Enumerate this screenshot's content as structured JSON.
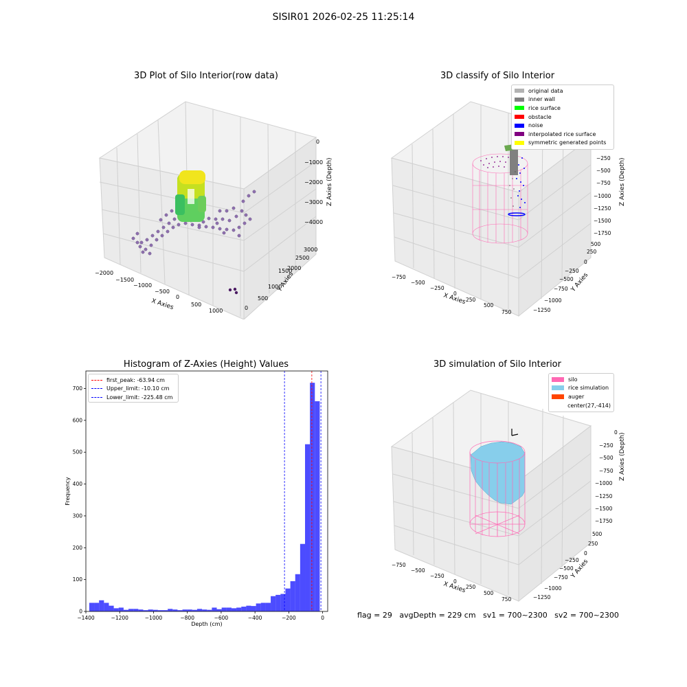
{
  "figure": {
    "suptitle": "SISIR01 2026-02-25 11:25:14",
    "footer": "flag = 29   avgDepth = 229 cm   sv1 = 700~2300   sv2 = 700~2300"
  },
  "panels": {
    "raw": {
      "title": "3D Plot of Silo Interior(row data)",
      "xlabel": "X Axies",
      "ylabel": "Y Axies",
      "zlabel": "Z Axies (Depth)",
      "xticks": [
        "−2000",
        "−1500",
        "−1000",
        "−500",
        "0",
        "500",
        "1000"
      ],
      "yticks": [
        "0",
        "500",
        "1000",
        "1500",
        "2000",
        "2500",
        "3000"
      ],
      "zticks": [
        "0",
        "−1000",
        "−2000",
        "−3000",
        "−4000"
      ]
    },
    "classify": {
      "title": "3D classify of Silo Interior",
      "xlabel": "X Axies",
      "ylabel": "Y Axies",
      "zlabel": "Z Axies (Depth)",
      "xticks": [
        "−750",
        "−500",
        "−250",
        "0",
        "250",
        "500",
        "750"
      ],
      "yticks": [
        "500",
        "250",
        "0",
        "−250",
        "−500",
        "−750",
        "−1000",
        "−1250"
      ],
      "zticks": [
        "−250",
        "−500",
        "−750",
        "−1000",
        "−1250",
        "−1500",
        "−1750"
      ],
      "legend": [
        {
          "label": "original data",
          "color": "#b3b3b3"
        },
        {
          "label": "inner wall",
          "color": "#808080"
        },
        {
          "label": "rice surface",
          "color": "#00ff00"
        },
        {
          "label": "obstacle",
          "color": "#ff0000"
        },
        {
          "label": "noise",
          "color": "#0000ff"
        },
        {
          "label": "interpolated rice surface",
          "color": "#800080"
        },
        {
          "label": "symmetric generated points",
          "color": "#ffff00"
        }
      ]
    },
    "simulation": {
      "title": "3D simulation of Silo Interior",
      "xlabel": "X Axies",
      "ylabel": "Y Axies",
      "zlabel": "Z Axies (Depth)",
      "xticks": [
        "−750",
        "−500",
        "−250",
        "0",
        "250",
        "500",
        "750"
      ],
      "yticks": [
        "500",
        "250",
        "0",
        "−250",
        "−500",
        "−750",
        "−1000",
        "−1250"
      ],
      "zticks": [
        "0",
        "−250",
        "−500",
        "−750",
        "−1000",
        "−1250",
        "−1500",
        "−1750"
      ],
      "legend": [
        {
          "label": "silo",
          "color": "#ff69b4"
        },
        {
          "label": "rice simulation",
          "color": "#87ceeb"
        },
        {
          "label": "auger",
          "color": "#ff4500"
        },
        {
          "label": "center(27,-414)",
          "color": ""
        }
      ]
    }
  },
  "chart_data": {
    "type": "bar",
    "title": "Histogram of Z-Axies (Height) Values",
    "xlabel": "Depth (cm)",
    "ylabel": "Frequency",
    "xlim": [
      -1400,
      30
    ],
    "ylim": [
      0,
      755
    ],
    "xticks": [
      -1400,
      -1200,
      -1000,
      -800,
      -600,
      -400,
      -200,
      0
    ],
    "yticks": [
      0,
      100,
      200,
      300,
      400,
      500,
      600,
      700
    ],
    "bar_color": "#0000ff",
    "bins": [
      {
        "x0": -1380,
        "x1": -1351,
        "count": 27
      },
      {
        "x0": -1351,
        "x1": -1322,
        "count": 27
      },
      {
        "x0": -1322,
        "x1": -1293,
        "count": 35
      },
      {
        "x0": -1293,
        "x1": -1264,
        "count": 27
      },
      {
        "x0": -1264,
        "x1": -1235,
        "count": 18
      },
      {
        "x0": -1235,
        "x1": -1206,
        "count": 10
      },
      {
        "x0": -1206,
        "x1": -1177,
        "count": 12
      },
      {
        "x0": -1177,
        "x1": -1148,
        "count": 5
      },
      {
        "x0": -1148,
        "x1": -1119,
        "count": 8
      },
      {
        "x0": -1119,
        "x1": -1090,
        "count": 8
      },
      {
        "x0": -1090,
        "x1": -1061,
        "count": 6
      },
      {
        "x0": -1061,
        "x1": -1032,
        "count": 4
      },
      {
        "x0": -1032,
        "x1": -1003,
        "count": 6
      },
      {
        "x0": -1003,
        "x1": -974,
        "count": 5
      },
      {
        "x0": -974,
        "x1": -945,
        "count": 4
      },
      {
        "x0": -945,
        "x1": -916,
        "count": 4
      },
      {
        "x0": -916,
        "x1": -887,
        "count": 8
      },
      {
        "x0": -887,
        "x1": -858,
        "count": 6
      },
      {
        "x0": -858,
        "x1": -829,
        "count": 4
      },
      {
        "x0": -829,
        "x1": -800,
        "count": 6
      },
      {
        "x0": -800,
        "x1": -771,
        "count": 6
      },
      {
        "x0": -771,
        "x1": -742,
        "count": 5
      },
      {
        "x0": -742,
        "x1": -713,
        "count": 8
      },
      {
        "x0": -713,
        "x1": -684,
        "count": 6
      },
      {
        "x0": -684,
        "x1": -655,
        "count": 5
      },
      {
        "x0": -655,
        "x1": -626,
        "count": 12
      },
      {
        "x0": -626,
        "x1": -597,
        "count": 7
      },
      {
        "x0": -597,
        "x1": -568,
        "count": 12
      },
      {
        "x0": -568,
        "x1": -539,
        "count": 12
      },
      {
        "x0": -539,
        "x1": -510,
        "count": 10
      },
      {
        "x0": -510,
        "x1": -481,
        "count": 12
      },
      {
        "x0": -481,
        "x1": -452,
        "count": 15
      },
      {
        "x0": -452,
        "x1": -423,
        "count": 18
      },
      {
        "x0": -423,
        "x1": -394,
        "count": 17
      },
      {
        "x0": -394,
        "x1": -365,
        "count": 25
      },
      {
        "x0": -365,
        "x1": -336,
        "count": 27
      },
      {
        "x0": -336,
        "x1": -307,
        "count": 27
      },
      {
        "x0": -307,
        "x1": -278,
        "count": 48
      },
      {
        "x0": -278,
        "x1": -249,
        "count": 52
      },
      {
        "x0": -249,
        "x1": -220,
        "count": 55
      },
      {
        "x0": -220,
        "x1": -191,
        "count": 72
      },
      {
        "x0": -191,
        "x1": -162,
        "count": 95
      },
      {
        "x0": -162,
        "x1": -133,
        "count": 117
      },
      {
        "x0": -133,
        "x1": -104,
        "count": 212
      },
      {
        "x0": -104,
        "x1": -75,
        "count": 525
      },
      {
        "x0": -75,
        "x1": -46,
        "count": 718
      },
      {
        "x0": -46,
        "x1": -17,
        "count": 660
      }
    ],
    "vlines": [
      {
        "label": "first_peak: -63.94 cm",
        "x": -63.94,
        "color": "#ff0000"
      },
      {
        "label": "Upper_limit: -10.10 cm",
        "x": -10.1,
        "color": "#0000ff"
      },
      {
        "label": "Lower_limit: -225.48 cm",
        "x": -225.48,
        "color": "#0000ff"
      }
    ],
    "legend_position": "upper-left"
  }
}
